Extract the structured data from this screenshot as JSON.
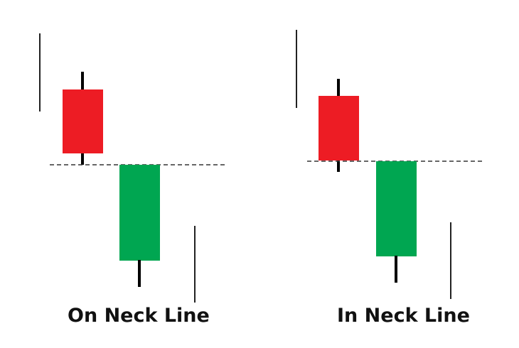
{
  "colors": {
    "bearish": "#ED1C24",
    "bullish": "#00A651",
    "wick": "#000000",
    "neckline": "#333333",
    "guide": "#222222",
    "background": "#FFFFFF"
  },
  "patterns": [
    {
      "caption": "On Neck Line",
      "bearish_candle": "red",
      "bullish_candle": "green",
      "neckline_style": "dashed"
    },
    {
      "caption": "In Neck Line",
      "bearish_candle": "red",
      "bullish_candle": "green",
      "neckline_style": "dashed"
    }
  ]
}
